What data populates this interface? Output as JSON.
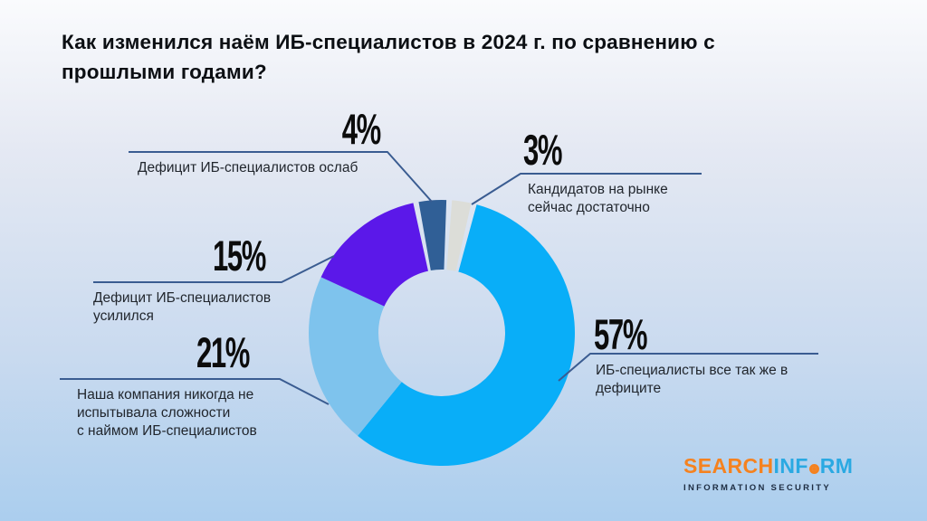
{
  "title": "Как изменился наём ИБ-специалистов в 2024 г. по сравнению с\nпрошлыми годами?",
  "chart_data": {
    "type": "pie",
    "subtype": "donut",
    "title": "Как изменился наём ИБ-специалистов в 2024 г. по сравнению с прошлыми годами?",
    "unit": "%",
    "legend_position": "callout-labels",
    "segments": [
      {
        "label": "Кандидатов на рынке сейчас достаточно",
        "value": 3,
        "color": "#DCDDD8",
        "start_deg": 4.4,
        "end_deg": 12.8
      },
      {
        "label": "ИБ-специалисты все так же в дефиците",
        "value": 57,
        "color": "#09AEF8",
        "start_deg": 15.2,
        "end_deg": 219.2
      },
      {
        "label": "Наша компания никогда не испытывала сложности с наймом ИБ-специалистов",
        "value": 21,
        "color": "#7EC3ED",
        "start_deg": 219.2,
        "end_deg": 294.8
      },
      {
        "label": "Дефицит ИБ-специалистов усилился",
        "value": 15,
        "color": "#5B18E9",
        "start_deg": 294.8,
        "end_deg": 347.6
      },
      {
        "label": "Дефицит ИБ-специалистов ослаб",
        "value": 4,
        "color": "#305F96",
        "start_deg": 350.0,
        "end_deg": 362.0
      }
    ]
  },
  "callouts": [
    {
      "pct": "4%",
      "text": "Дефицит ИБ-специалистов ослаб"
    },
    {
      "pct": "3%",
      "text": "Кандидатов на рынке\nсейчас достаточно"
    },
    {
      "pct": "15%",
      "text": "Дефицит ИБ-специалистов\nусилился"
    },
    {
      "pct": "21%",
      "text": "Наша компания никогда не\nиспытывала сложности\nс наймом ИБ-специалистов"
    },
    {
      "pct": "57%",
      "text": "ИБ-специалисты все так же в\nдефиците"
    }
  ],
  "callout_line_color": "#3A5C91",
  "logo": {
    "part1": "SEARCH",
    "part2": "INF",
    "part3": "RM",
    "tagline": "INFORMATION SECURITY",
    "orange": "#F5821F",
    "blue": "#2AA9E2"
  }
}
